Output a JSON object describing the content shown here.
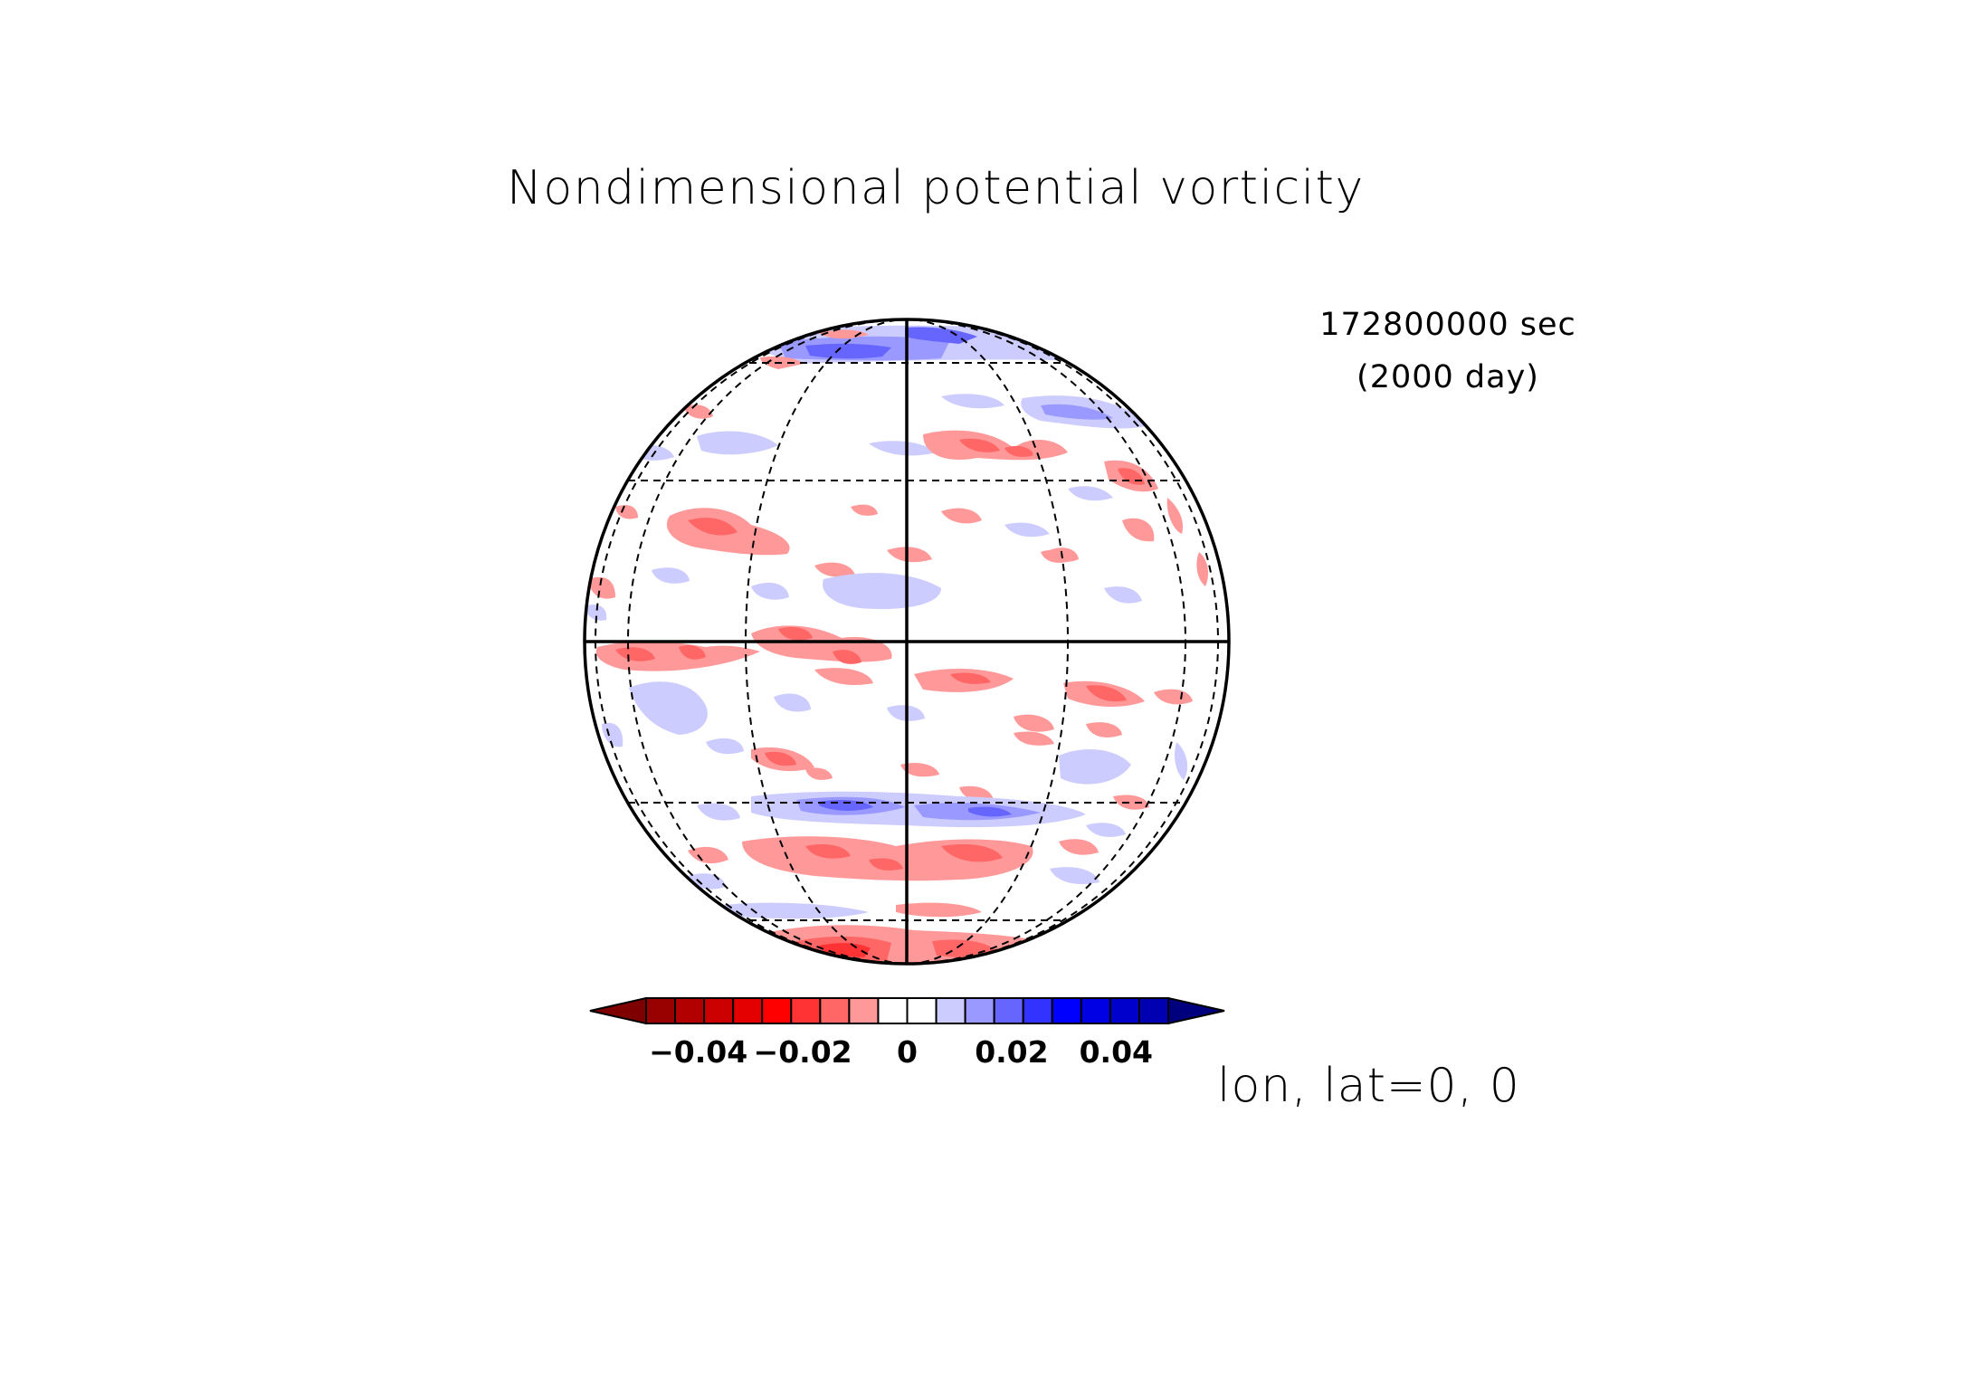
{
  "title": "Nondimensional potential vorticity",
  "time": {
    "seconds": "172800000 sec",
    "days": "(2000 day)"
  },
  "projection_label": "lon, lat=0, 0",
  "colorbar": {
    "tick_labels": [
      "−0.04",
      "−0.02",
      "0",
      "0.02",
      "0.04"
    ],
    "colors": [
      "#7f0000",
      "#990000",
      "#b20000",
      "#cc0000",
      "#e50000",
      "#ff0000",
      "#ff3333",
      "#ff6666",
      "#ff9999",
      "#ffffff",
      "#ffffff",
      "#ccccff",
      "#9999ff",
      "#6666ff",
      "#3333ff",
      "#0000ff",
      "#0000e5",
      "#0000cc",
      "#0000b2",
      "#00007f"
    ]
  },
  "chart_data": {
    "type": "heatmap",
    "title": "Nondimensional potential vorticity",
    "projection": "orthographic",
    "center": {
      "lon": 0,
      "lat": 0
    },
    "field": "nondimensional potential vorticity",
    "color_range": [
      -0.05,
      0.05
    ],
    "colorbar_ticks": [
      -0.04,
      -0.02,
      0,
      0.02,
      0.04
    ],
    "gridlines": {
      "latitudes": [
        -60,
        -30,
        0,
        30,
        60
      ],
      "longitudes": [
        -60,
        -30,
        0,
        30,
        60,
        90
      ]
    },
    "features": [
      {
        "lat": 82,
        "lon": -10,
        "value": 0.03
      },
      {
        "lat": 80,
        "lon": 30,
        "value": 0.025
      },
      {
        "lat": 84,
        "lon": 10,
        "value": 0.01
      },
      {
        "lat": 62,
        "lon": 60,
        "value": 0.02
      },
      {
        "lat": 52,
        "lon": 20,
        "value": -0.02
      },
      {
        "lat": 50,
        "lon": 40,
        "value": -0.025
      },
      {
        "lat": 52,
        "lon": 72,
        "value": -0.02
      },
      {
        "lat": 36,
        "lon": -42,
        "value": -0.02
      },
      {
        "lat": 44,
        "lon": -70,
        "value": 0.01
      },
      {
        "lat": 26,
        "lon": 30,
        "value": -0.015
      },
      {
        "lat": 24,
        "lon": 60,
        "value": -0.02
      },
      {
        "lat": 12,
        "lon": -16,
        "value": 0.01
      },
      {
        "lat": 2,
        "lon": -50,
        "value": -0.025
      },
      {
        "lat": 1,
        "lon": -20,
        "value": -0.02
      },
      {
        "lat": -3,
        "lon": 18,
        "value": -0.015
      },
      {
        "lat": -8,
        "lon": 55,
        "value": -0.02
      },
      {
        "lat": -13,
        "lon": -55,
        "value": 0.01
      },
      {
        "lat": -18,
        "lon": 45,
        "value": -0.02
      },
      {
        "lat": -22,
        "lon": 20,
        "value": -0.015
      },
      {
        "lat": -28,
        "lon": 52,
        "value": 0.01
      },
      {
        "lat": -33,
        "lon": -15,
        "value": 0.025
      },
      {
        "lat": -34,
        "lon": 20,
        "value": 0.02
      },
      {
        "lat": -43,
        "lon": -10,
        "value": -0.025
      },
      {
        "lat": -44,
        "lon": 20,
        "value": -0.03
      },
      {
        "lat": -58,
        "lon": -20,
        "value": -0.015
      },
      {
        "lat": -84,
        "lon": -10,
        "value": -0.03
      }
    ]
  }
}
